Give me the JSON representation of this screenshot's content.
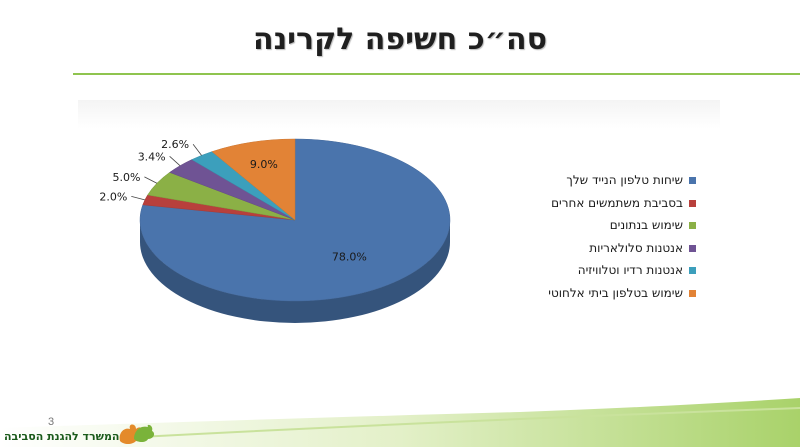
{
  "slide": {
    "title": "סה״כ חשיפה לקרינה",
    "page_number": "3",
    "ministry_name": "המשרד להגנת הסביבה",
    "accent_color": "#8fc44f"
  },
  "chart_data": {
    "type": "pie",
    "style": "3d",
    "title": "",
    "legend_position": "right",
    "series": [
      {
        "name": "שיחות טלפון הנייד שלך",
        "value": 78.0,
        "label": "78.0%",
        "color": "#4a74ac"
      },
      {
        "name": "בסביבת משתמשים אחרים",
        "value": 2.0,
        "label": "2.0%",
        "color": "#b8403c"
      },
      {
        "name": "שימוש בנתונים",
        "value": 5.0,
        "label": "5.0%",
        "color": "#8bb046"
      },
      {
        "name": "אנטנות סלולאריות",
        "value": 3.4,
        "label": "3.4%",
        "color": "#6f5394"
      },
      {
        "name": "אנטנות רדיו וטלוויזיה",
        "value": 2.6,
        "label": "2.6%",
        "color": "#3c9fbc"
      },
      {
        "name": "שימוש בטלפון ביתי אלחוטי",
        "value": 9.0,
        "label": "9.0%",
        "color": "#e28336"
      }
    ]
  }
}
